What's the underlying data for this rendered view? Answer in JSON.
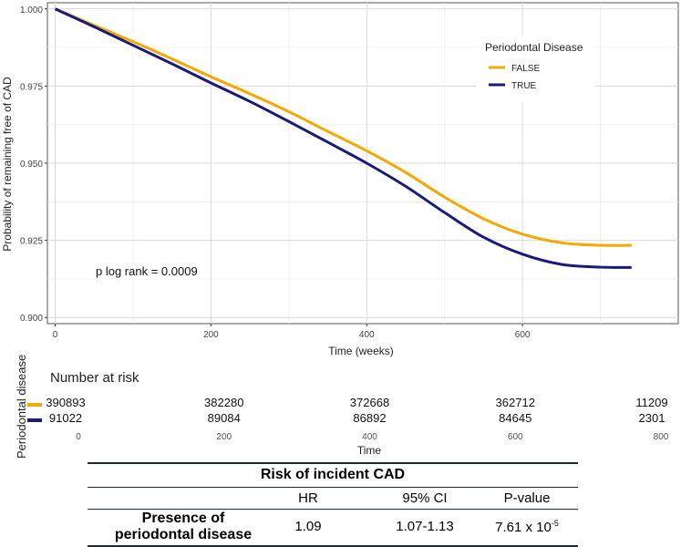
{
  "chart_data": {
    "type": "line",
    "title": "",
    "xlabel": "Time (weeks)",
    "ylabel": "Probability of remaining free of CAD",
    "xlim": [
      -10,
      800
    ],
    "ylim": [
      0.898,
      1.002
    ],
    "xticks": [
      0,
      200,
      400,
      600
    ],
    "yticks": [
      0.9,
      0.925,
      0.95,
      0.975,
      1.0
    ],
    "ytick_labels": [
      "0.900",
      "0.925",
      "0.950",
      "0.975",
      "1.000"
    ],
    "legend": {
      "title": "Periodontal Disease",
      "position": "top-right",
      "entries": [
        "FALSE",
        "TRUE"
      ]
    },
    "annotation": "p log rank = 0.0009",
    "series": [
      {
        "name": "FALSE",
        "color": "#F5A800",
        "x": [
          0,
          50,
          100,
          150,
          200,
          250,
          300,
          350,
          400,
          450,
          500,
          550,
          600,
          650,
          700,
          740
        ],
        "y": [
          1.0,
          0.9947,
          0.9894,
          0.9838,
          0.978,
          0.9725,
          0.9667,
          0.9603,
          0.954,
          0.947,
          0.939,
          0.932,
          0.927,
          0.9242,
          0.9234,
          0.9234
        ]
      },
      {
        "name": "TRUE",
        "color": "#1A1A7A",
        "x": [
          0,
          50,
          100,
          150,
          200,
          250,
          300,
          350,
          400,
          450,
          500,
          550,
          600,
          650,
          700,
          740
        ],
        "y": [
          1.0,
          0.9942,
          0.9882,
          0.9822,
          0.976,
          0.97,
          0.9635,
          0.9568,
          0.95,
          0.9425,
          0.934,
          0.926,
          0.9205,
          0.9172,
          0.9163,
          0.9162
        ]
      }
    ],
    "risk_table": {
      "title": "Number at risk",
      "ylabel": "Periodontal disease",
      "xlabel": "Time",
      "times": [
        0,
        200,
        400,
        600,
        800
      ],
      "tick_labels": [
        "0",
        "200",
        "400",
        "600",
        "800"
      ],
      "rows": [
        {
          "name": "FALSE",
          "color": "#F5A800",
          "counts": [
            "390893",
            "382280",
            "372668",
            "362712",
            "11209"
          ]
        },
        {
          "name": "TRUE",
          "color": "#1A1A7A",
          "counts": [
            "91022",
            "89084",
            "86892",
            "84645",
            "2301"
          ]
        }
      ]
    }
  },
  "hr_table": {
    "title": "Risk of incident CAD",
    "headers": [
      "HR",
      "95% CI",
      "P-value"
    ],
    "row_label_line1": "Presence of",
    "row_label_line2": "periodontal disease",
    "hr": "1.09",
    "ci": "1.07-1.13",
    "p_base": "7.61 x 10",
    "p_exp": "-5"
  }
}
